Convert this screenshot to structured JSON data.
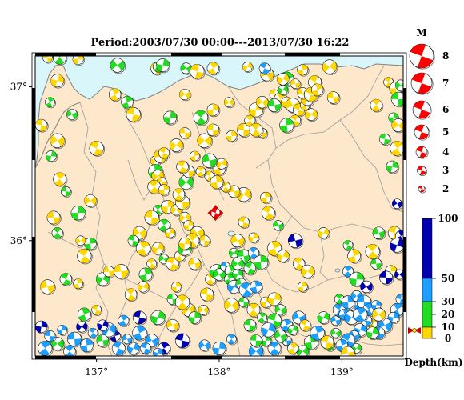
{
  "title": "Period:2003/07/30 00:00---2013/07/30 16:22",
  "axes": {
    "lon_ticks": [
      {
        "value": 137,
        "label": "137°"
      },
      {
        "value": 138,
        "label": "138°"
      },
      {
        "value": 139,
        "label": "139°"
      }
    ],
    "lat_ticks": [
      {
        "value": 37,
        "label": "37°"
      },
      {
        "value": 36,
        "label": "36°"
      }
    ],
    "lon_range": [
      136.5,
      139.5
    ],
    "lat_range": [
      35.25,
      37.2
    ]
  },
  "colors": {
    "land": "#fde8cc",
    "sea": "#d9f7fa",
    "border": "#808080",
    "frame": "#000000",
    "beachball_red": "#ff0000",
    "depth_0_10": "#ffd700",
    "depth_10_20": "#22dd22",
    "depth_20_30": "#22dd22",
    "depth_30_50": "#1e9fff",
    "depth_50_100": "#0000b0"
  },
  "magnitude_legend": {
    "title": "M",
    "items": [
      "8",
      "7",
      "6",
      "5",
      "4",
      "3",
      "2"
    ]
  },
  "depth_legend": {
    "title": "Depth(km)",
    "ticks": [
      "100",
      "50",
      "30",
      "20",
      "10",
      "0"
    ]
  },
  "main_event": {
    "lon": 137.97,
    "lat": 36.18,
    "color": "red",
    "icon": "star-marker-icon"
  },
  "events": [
    [
      136.6,
      37.19,
      "y"
    ],
    [
      136.7,
      37.19,
      "g"
    ],
    [
      136.85,
      37.18,
      "y"
    ],
    [
      137.17,
      37.14,
      "g"
    ],
    [
      137.49,
      37.12,
      "y"
    ],
    [
      137.5,
      37.13,
      "g"
    ],
    [
      137.54,
      37.14,
      "g"
    ],
    [
      137.73,
      37.12,
      "g"
    ],
    [
      137.82,
      37.1,
      "y"
    ],
    [
      137.95,
      37.12,
      "y"
    ],
    [
      138.23,
      37.13,
      "y"
    ],
    [
      138.39,
      37.08,
      "y"
    ],
    [
      138.37,
      37.12,
      "c"
    ],
    [
      138.55,
      37.05,
      "g"
    ],
    [
      138.52,
      37.05,
      "y"
    ],
    [
      138.62,
      37.02,
      "y"
    ],
    [
      138.78,
      37.03,
      "y"
    ],
    [
      138.68,
      37.11,
      "y"
    ],
    [
      138.9,
      37.13,
      "y"
    ],
    [
      138.93,
      36.93,
      "y"
    ],
    [
      139.38,
      37.03,
      "y"
    ],
    [
      139.44,
      36.99,
      "y"
    ],
    [
      139.48,
      37.01,
      "g"
    ],
    [
      139.46,
      36.92,
      "g"
    ],
    [
      139.28,
      36.88,
      "y"
    ],
    [
      139.42,
      36.8,
      "g"
    ],
    [
      139.46,
      36.75,
      "y"
    ],
    [
      139.35,
      36.66,
      "g"
    ],
    [
      139.45,
      36.6,
      "y"
    ],
    [
      139.41,
      36.48,
      "g"
    ],
    [
      139.45,
      36.24,
      "b"
    ],
    [
      139.43,
      36.05,
      "y"
    ],
    [
      139.48,
      36.03,
      "b"
    ],
    [
      139.45,
      35.97,
      "b"
    ],
    [
      139.3,
      36.05,
      "g"
    ],
    [
      139.05,
      35.97,
      "g"
    ],
    [
      139.1,
      35.9,
      "y"
    ],
    [
      138.85,
      36.05,
      "y"
    ],
    [
      138.62,
      36.0,
      "b"
    ],
    [
      138.65,
      35.85,
      "y"
    ],
    [
      138.68,
      35.7,
      "y"
    ],
    [
      138.72,
      35.8,
      "y"
    ],
    [
      139.28,
      35.85,
      "g"
    ],
    [
      139.25,
      35.93,
      "y"
    ],
    [
      139.4,
      35.8,
      "y"
    ],
    [
      139.47,
      35.78,
      "b"
    ],
    [
      139.36,
      35.76,
      "b"
    ],
    [
      139.05,
      35.8,
      "c"
    ],
    [
      139.12,
      35.75,
      "g"
    ],
    [
      139.2,
      35.7,
      "b"
    ],
    [
      139.48,
      35.62,
      "c"
    ],
    [
      139.45,
      35.55,
      "c"
    ],
    [
      139.42,
      35.5,
      "c"
    ],
    [
      139.35,
      35.45,
      "c"
    ],
    [
      139.3,
      35.4,
      "c"
    ],
    [
      139.25,
      35.46,
      "y"
    ],
    [
      139.15,
      35.42,
      "c"
    ],
    [
      139.1,
      35.38,
      "c"
    ],
    [
      139.05,
      35.35,
      "c"
    ],
    [
      139.0,
      35.32,
      "c"
    ],
    [
      139.12,
      35.3,
      "g"
    ],
    [
      139.05,
      35.27,
      "y"
    ],
    [
      138.9,
      35.32,
      "g"
    ],
    [
      138.75,
      35.34,
      "g"
    ],
    [
      138.68,
      35.28,
      "g"
    ],
    [
      138.55,
      35.35,
      "c"
    ],
    [
      138.45,
      35.3,
      "c"
    ],
    [
      138.38,
      35.35,
      "g"
    ],
    [
      138.3,
      35.28,
      "c"
    ],
    [
      138.3,
      35.35,
      "g"
    ],
    [
      138.1,
      35.36,
      "c"
    ],
    [
      138.0,
      35.3,
      "c"
    ],
    [
      137.88,
      35.32,
      "c"
    ],
    [
      137.7,
      35.35,
      "b"
    ],
    [
      137.55,
      35.3,
      "b"
    ],
    [
      137.5,
      35.27,
      "c"
    ],
    [
      137.45,
      35.35,
      "c"
    ],
    [
      137.4,
      35.3,
      "c"
    ],
    [
      137.35,
      35.4,
      "c"
    ],
    [
      137.3,
      35.3,
      "c"
    ],
    [
      137.25,
      35.36,
      "c"
    ],
    [
      137.18,
      35.3,
      "c"
    ],
    [
      137.15,
      35.38,
      "b"
    ],
    [
      137.1,
      35.42,
      "c"
    ],
    [
      137.05,
      35.35,
      "g"
    ],
    [
      136.97,
      35.4,
      "c"
    ],
    [
      136.92,
      35.32,
      "c"
    ],
    [
      136.88,
      35.44,
      "b"
    ],
    [
      136.82,
      35.36,
      "c"
    ],
    [
      136.78,
      35.28,
      "c"
    ],
    [
      136.72,
      35.42,
      "c"
    ],
    [
      136.68,
      35.33,
      "g"
    ],
    [
      136.62,
      35.38,
      "c"
    ],
    [
      136.58,
      35.3,
      "c"
    ],
    [
      136.55,
      35.44,
      "b"
    ],
    [
      136.55,
      35.22,
      "c"
    ],
    [
      137.35,
      35.5,
      "b"
    ],
    [
      137.22,
      35.48,
      "c"
    ],
    [
      137.5,
      35.5,
      "g"
    ],
    [
      137.62,
      35.45,
      "y"
    ],
    [
      137.0,
      35.55,
      "y"
    ],
    [
      136.9,
      35.52,
      "g"
    ],
    [
      137.05,
      35.45,
      "b"
    ],
    [
      136.6,
      35.7,
      "y"
    ],
    [
      136.75,
      35.75,
      "g"
    ],
    [
      136.85,
      35.72,
      "y"
    ],
    [
      137.05,
      35.75,
      "g"
    ],
    [
      137.1,
      35.8,
      "y"
    ],
    [
      136.9,
      35.9,
      "y"
    ],
    [
      136.95,
      35.98,
      "g"
    ],
    [
      136.87,
      36.0,
      "y"
    ],
    [
      136.65,
      36.15,
      "y"
    ],
    [
      136.68,
      36.05,
      "g"
    ],
    [
      136.85,
      36.18,
      "g"
    ],
    [
      136.95,
      36.26,
      "y"
    ],
    [
      136.75,
      36.32,
      "g"
    ],
    [
      136.7,
      36.4,
      "y"
    ],
    [
      136.63,
      36.55,
      "g"
    ],
    [
      136.68,
      36.65,
      "y"
    ],
    [
      136.55,
      36.75,
      "y"
    ],
    [
      136.62,
      36.9,
      "g"
    ],
    [
      136.68,
      37.04,
      "y"
    ],
    [
      136.8,
      36.82,
      "g"
    ],
    [
      137.0,
      36.6,
      "y"
    ],
    [
      137.25,
      36.9,
      "g"
    ],
    [
      137.48,
      36.52,
      "y"
    ],
    [
      137.52,
      36.55,
      "y"
    ],
    [
      137.55,
      36.57,
      "y"
    ],
    [
      137.48,
      36.45,
      "g"
    ],
    [
      137.5,
      36.42,
      "y"
    ],
    [
      137.53,
      36.38,
      "y"
    ],
    [
      137.47,
      36.35,
      "y"
    ],
    [
      137.55,
      36.33,
      "y"
    ],
    [
      137.73,
      36.38,
      "g"
    ],
    [
      137.75,
      36.45,
      "y"
    ],
    [
      137.5,
      36.2,
      "g"
    ],
    [
      137.58,
      36.22,
      "y"
    ],
    [
      137.65,
      36.2,
      "y"
    ],
    [
      137.45,
      36.15,
      "y"
    ],
    [
      137.55,
      36.1,
      "g"
    ],
    [
      137.6,
      36.05,
      "y"
    ],
    [
      137.35,
      36.05,
      "y"
    ],
    [
      137.3,
      36.0,
      "g"
    ],
    [
      137.38,
      35.95,
      "y"
    ],
    [
      137.5,
      35.95,
      "y"
    ],
    [
      137.55,
      35.88,
      "g"
    ],
    [
      137.62,
      35.85,
      "y"
    ],
    [
      137.68,
      35.9,
      "y"
    ],
    [
      137.72,
      35.95,
      "g"
    ],
    [
      137.8,
      35.85,
      "y"
    ],
    [
      137.45,
      35.85,
      "y"
    ],
    [
      137.4,
      35.78,
      "g"
    ],
    [
      137.38,
      35.7,
      "y"
    ],
    [
      137.2,
      35.8,
      "y"
    ],
    [
      137.28,
      35.65,
      "y"
    ],
    [
      137.65,
      35.7,
      "y"
    ],
    [
      137.75,
      35.55,
      "y"
    ],
    [
      137.62,
      35.62,
      "g"
    ],
    [
      137.7,
      35.6,
      "y"
    ],
    [
      137.8,
      35.5,
      "g"
    ],
    [
      137.87,
      35.55,
      "y"
    ],
    [
      137.9,
      35.65,
      "y"
    ],
    [
      137.93,
      35.75,
      "y"
    ],
    [
      137.98,
      35.8,
      "g"
    ],
    [
      138.0,
      35.78,
      "g"
    ],
    [
      138.05,
      35.83,
      "c"
    ],
    [
      138.1,
      35.8,
      "g"
    ],
    [
      138.15,
      35.78,
      "g"
    ],
    [
      138.2,
      35.85,
      "g"
    ],
    [
      138.25,
      35.82,
      "g"
    ],
    [
      138.08,
      35.75,
      "g"
    ],
    [
      138.12,
      35.7,
      "c"
    ],
    [
      138.18,
      35.72,
      "g"
    ],
    [
      138.22,
      35.68,
      "c"
    ],
    [
      138.3,
      35.7,
      "c"
    ],
    [
      138.12,
      35.92,
      "g"
    ],
    [
      138.2,
      35.9,
      "g"
    ],
    [
      138.28,
      35.92,
      "c"
    ],
    [
      138.34,
      35.86,
      "g"
    ],
    [
      138.15,
      35.85,
      "g"
    ],
    [
      138.2,
      35.6,
      "g"
    ],
    [
      138.28,
      35.55,
      "y"
    ],
    [
      138.38,
      35.6,
      "y"
    ],
    [
      138.1,
      35.58,
      "y"
    ],
    [
      138.25,
      35.45,
      "g"
    ],
    [
      138.35,
      35.5,
      "g"
    ],
    [
      138.45,
      35.62,
      "y"
    ],
    [
      138.5,
      35.55,
      "g"
    ],
    [
      138.45,
      35.48,
      "g"
    ],
    [
      138.55,
      35.45,
      "c"
    ],
    [
      138.6,
      35.42,
      "g"
    ],
    [
      138.65,
      35.5,
      "c"
    ],
    [
      138.7,
      35.45,
      "y"
    ],
    [
      138.8,
      35.4,
      "c"
    ],
    [
      138.85,
      35.5,
      "g"
    ],
    [
      138.95,
      35.48,
      "c"
    ],
    [
      138.98,
      35.55,
      "c"
    ],
    [
      139.02,
      35.52,
      "c"
    ],
    [
      139.08,
      35.5,
      "c"
    ],
    [
      139.1,
      35.58,
      "c"
    ],
    [
      138.98,
      35.62,
      "g"
    ],
    [
      139.05,
      35.6,
      "c"
    ],
    [
      139.12,
      35.64,
      "c"
    ],
    [
      139.18,
      35.6,
      "c"
    ],
    [
      139.22,
      35.55,
      "c"
    ],
    [
      139.28,
      35.58,
      "c"
    ],
    [
      139.3,
      35.52,
      "y"
    ],
    [
      139.2,
      35.48,
      "c"
    ],
    [
      139.15,
      35.52,
      "c"
    ],
    [
      139.25,
      35.4,
      "g"
    ],
    [
      138.95,
      35.4,
      "g"
    ],
    [
      138.88,
      35.34,
      "y"
    ],
    [
      138.6,
      35.3,
      "y"
    ],
    [
      138.4,
      35.42,
      "c"
    ],
    [
      138.5,
      35.38,
      "g"
    ],
    [
      137.92,
      36.42,
      "y"
    ],
    [
      138.0,
      36.47,
      "y"
    ],
    [
      138.02,
      36.5,
      "y"
    ],
    [
      137.92,
      36.52,
      "g"
    ],
    [
      137.7,
      36.48,
      "y"
    ],
    [
      137.8,
      36.55,
      "y"
    ],
    [
      137.65,
      36.62,
      "y"
    ],
    [
      137.72,
      36.7,
      "y"
    ],
    [
      137.85,
      36.8,
      "g"
    ],
    [
      137.95,
      36.85,
      "y"
    ],
    [
      138.08,
      36.9,
      "y"
    ],
    [
      138.2,
      36.72,
      "y"
    ],
    [
      138.25,
      36.78,
      "y"
    ],
    [
      138.3,
      36.85,
      "y"
    ],
    [
      138.35,
      36.9,
      "y"
    ],
    [
      138.45,
      36.95,
      "y"
    ],
    [
      138.5,
      36.92,
      "y"
    ],
    [
      138.55,
      36.9,
      "y"
    ],
    [
      138.6,
      36.88,
      "y"
    ],
    [
      138.65,
      36.85,
      "y"
    ],
    [
      138.7,
      36.88,
      "y"
    ],
    [
      138.72,
      36.92,
      "y"
    ],
    [
      138.68,
      36.96,
      "y"
    ],
    [
      138.75,
      36.95,
      "y"
    ],
    [
      138.8,
      36.98,
      "y"
    ],
    [
      138.52,
      36.98,
      "g"
    ],
    [
      138.45,
      36.88,
      "g"
    ],
    [
      138.62,
      36.78,
      "y"
    ],
    [
      138.55,
      36.75,
      "g"
    ],
    [
      138.75,
      36.82,
      "y"
    ],
    [
      138.35,
      36.7,
      "y"
    ],
    [
      138.3,
      36.72,
      "y"
    ],
    [
      138.1,
      36.68,
      "y"
    ],
    [
      137.88,
      36.65,
      "y"
    ],
    [
      137.95,
      36.72,
      "y"
    ],
    [
      137.85,
      36.45,
      "y"
    ],
    [
      137.6,
      36.8,
      "g"
    ],
    [
      137.72,
      36.95,
      "y"
    ],
    [
      137.3,
      36.82,
      "y"
    ],
    [
      137.15,
      36.95,
      "y"
    ],
    [
      138.28,
      36.02,
      "y"
    ],
    [
      138.15,
      36.0,
      "y"
    ],
    [
      138.2,
      36.12,
      "y"
    ],
    [
      138.45,
      35.95,
      "y"
    ],
    [
      138.52,
      35.9,
      "y"
    ],
    [
      138.48,
      36.1,
      "g"
    ],
    [
      138.4,
      36.18,
      "y"
    ],
    [
      138.38,
      36.28,
      "y"
    ],
    [
      138.2,
      36.3,
      "y"
    ],
    [
      138.12,
      36.32,
      "y"
    ],
    [
      138.05,
      36.35,
      "y"
    ],
    [
      137.98,
      36.38,
      "y"
    ],
    [
      137.72,
      36.15,
      "y"
    ],
    [
      137.7,
      36.25,
      "y"
    ],
    [
      137.67,
      36.3,
      "y"
    ],
    [
      137.75,
      36.1,
      "y"
    ],
    [
      137.82,
      36.05,
      "y"
    ],
    [
      137.88,
      36.0,
      "y"
    ],
    [
      137.78,
      36.0,
      "y"
    ],
    [
      137.72,
      35.98,
      "y"
    ]
  ]
}
